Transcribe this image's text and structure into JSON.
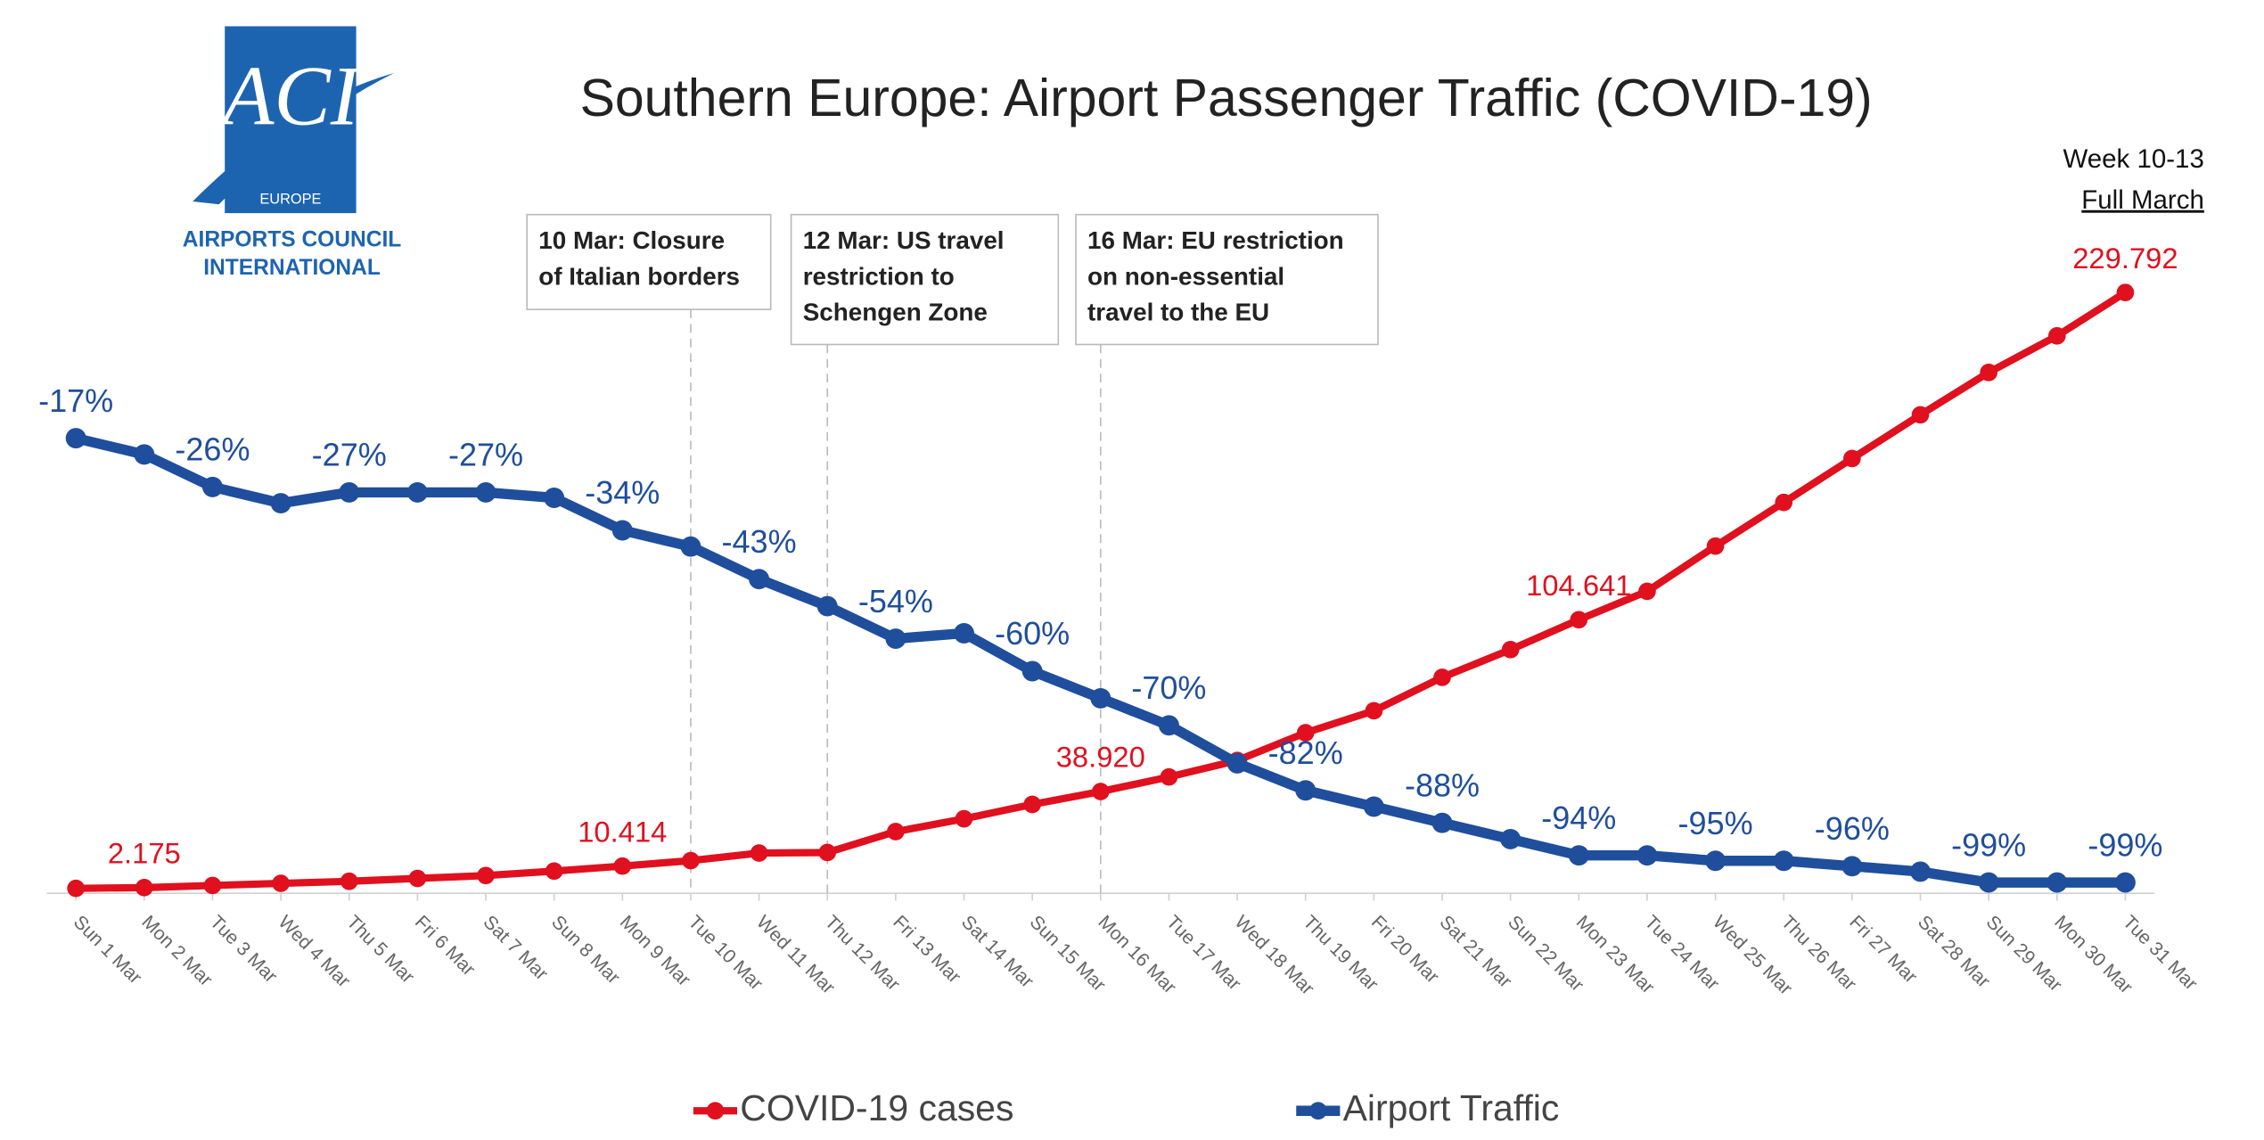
{
  "chart_data": {
    "type": "line",
    "title": "Southern Europe: Airport Passenger Traffic (COVID-19)",
    "subtitle": [
      "Week 10-13",
      "Full March"
    ],
    "logo": {
      "mark": "ACI",
      "region": "EUROPE",
      "name": [
        "AIRPORTS COUNCIL",
        "INTERNATIONAL"
      ]
    },
    "annotations": [
      {
        "lines": [
          "10 Mar: Closure",
          "of Italian borders"
        ]
      },
      {
        "lines": [
          "12 Mar: US travel",
          "restriction to",
          "Schengen Zone"
        ]
      },
      {
        "lines": [
          "16 Mar: EU restriction",
          "on non-essential",
          "travel to the EU"
        ]
      }
    ],
    "categories": [
      "Sun 1 Mar",
      "Mon 2 Mar",
      "Tue 3 Mar",
      "Wed 4 Mar",
      "Thu 5 Mar",
      "Fri 6 Mar",
      "Sat 7 Mar",
      "Sun 8 Mar",
      "Mon 9 Mar",
      "Tue 10 Mar",
      "Wed 11 Mar",
      "Thu 12 Mar",
      "Fri 13 Mar",
      "Sat 14 Mar",
      "Sun 15 Mar",
      "Mon 16 Mar",
      "Tue 17 Mar",
      "Wed 18 Mar",
      "Thu 19 Mar",
      "Fri 20 Mar",
      "Sat 21 Mar",
      "Sun 22 Mar",
      "Mon 23 Mar",
      "Tue 24 Mar",
      "Wed 25 Mar",
      "Thu 26 Mar",
      "Fri 27 Mar",
      "Sat 28 Mar",
      "Sun 29 Mar",
      "Mon 30 Mar",
      "Tue 31 Mar"
    ],
    "ylim": [
      0,
      230000
    ],
    "y2lim": [
      -101,
      10
    ],
    "legend": "bottom",
    "series": [
      {
        "name": "COVID-19 cases",
        "color": "#e0101f",
        "values": [
          1900,
          2175,
          3000,
          3800,
          4600,
          5700,
          6800,
          8500,
          10414,
          12500,
          15400,
          15600,
          23600,
          28500,
          34000,
          38920,
          44500,
          50800,
          61400,
          69800,
          82600,
          93200,
          104641,
          115500,
          132800,
          149500,
          166300,
          183000,
          199200,
          213200,
          229792
        ],
        "value_labels": [
          null,
          "2.175",
          null,
          null,
          null,
          null,
          null,
          null,
          "10.414",
          null,
          null,
          null,
          null,
          null,
          null,
          "38.920",
          null,
          null,
          null,
          null,
          null,
          null,
          "104.641",
          null,
          null,
          null,
          null,
          null,
          null,
          null,
          "229.792"
        ]
      },
      {
        "name": "Airport Traffic",
        "color": "#1f4e9c",
        "axis": "y2",
        "values": [
          -17,
          -20,
          -26,
          -29,
          -27,
          -27,
          -27,
          -28,
          -34,
          -37,
          -43,
          -48,
          -54,
          -53,
          -60,
          -65,
          -70,
          -77,
          -82,
          -85,
          -88,
          -91,
          -94,
          -94,
          -95,
          -95,
          -96,
          -97,
          -99,
          -99,
          -99
        ],
        "value_labels": [
          "-17%",
          null,
          "-26%",
          null,
          "-27%",
          null,
          "-27%",
          null,
          "-34%",
          null,
          "-43%",
          null,
          "-54%",
          null,
          "-60%",
          null,
          "-70%",
          null,
          "-82%",
          null,
          "-88%",
          null,
          "-94%",
          null,
          "-95%",
          null,
          "-96%",
          null,
          "-99%",
          null,
          "-99%"
        ]
      }
    ]
  }
}
